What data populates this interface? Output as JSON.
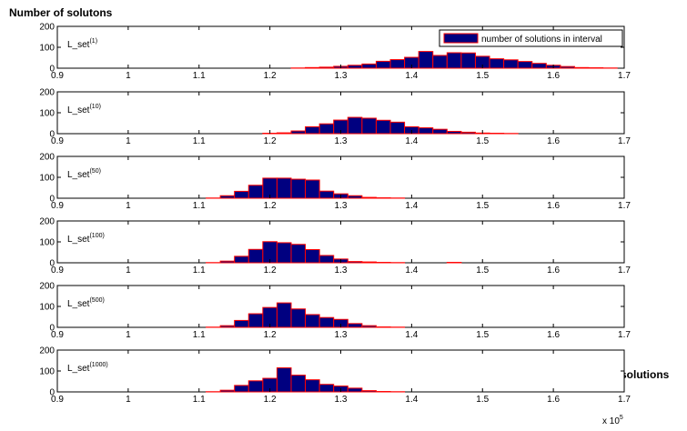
{
  "figure": {
    "ylabel": "Number of solutons",
    "xlabel": "Length of solutions",
    "x_exponent": "x 10",
    "x_exponent_power": "5",
    "legend_label": "number of solutions in interval",
    "bar_color": "#000080",
    "edge_color": "#ff0000"
  },
  "chart_data": [
    {
      "type": "bar",
      "label_base": "L_set",
      "label_sup": "(1)",
      "xlim": [
        0.9,
        1.7
      ],
      "ylim": [
        0,
        200
      ],
      "yticks": [
        "0",
        "100",
        "200"
      ],
      "xticks": [
        "0.9",
        "1",
        "1.1",
        "1.2",
        "1.3",
        "1.4",
        "1.5",
        "1.6",
        "1.7"
      ],
      "bin_start": 0.97,
      "bin_width": 0.02,
      "values": [
        0,
        0,
        0,
        0,
        0,
        0,
        0,
        0,
        0,
        0,
        0,
        0,
        0,
        1,
        3,
        5,
        9,
        14,
        20,
        33,
        41,
        52,
        80,
        61,
        74,
        73,
        57,
        45,
        40,
        32,
        23,
        14,
        8,
        3,
        2,
        1
      ]
    },
    {
      "type": "bar",
      "label_base": "L_set",
      "label_sup": "(10)",
      "xlim": [
        0.9,
        1.7
      ],
      "ylim": [
        0,
        200
      ],
      "yticks": [
        "0",
        "100",
        "200"
      ],
      "xticks": [
        "0.9",
        "1",
        "1.1",
        "1.2",
        "1.3",
        "1.4",
        "1.5",
        "1.6",
        "1.7"
      ],
      "bin_start": 0.97,
      "bin_width": 0.02,
      "values": [
        0,
        0,
        0,
        0,
        0,
        0,
        0,
        0,
        0,
        0,
        0,
        2,
        4,
        13,
        33,
        47,
        65,
        78,
        74,
        64,
        55,
        33,
        28,
        21,
        11,
        7,
        3,
        2,
        1,
        0,
        0,
        0,
        0,
        0,
        0,
        0
      ]
    },
    {
      "type": "bar",
      "label_base": "L_set",
      "label_sup": "(50)",
      "xlim": [
        0.9,
        1.7
      ],
      "ylim": [
        0,
        200
      ],
      "yticks": [
        "0",
        "100",
        "200"
      ],
      "xticks": [
        "0.9",
        "1",
        "1.1",
        "1.2",
        "1.3",
        "1.4",
        "1.5",
        "1.6",
        "1.7"
      ],
      "bin_start": 0.97,
      "bin_width": 0.02,
      "values": [
        0,
        0,
        0,
        0,
        0,
        0,
        0,
        1,
        12,
        33,
        62,
        96,
        96,
        91,
        87,
        34,
        21,
        12,
        4,
        2,
        1,
        0,
        0,
        0,
        0,
        0,
        0,
        0,
        0,
        0,
        0,
        0,
        0,
        0,
        0,
        0
      ]
    },
    {
      "type": "bar",
      "label_base": "L_set",
      "label_sup": "(100)",
      "xlim": [
        0.9,
        1.7
      ],
      "ylim": [
        0,
        200
      ],
      "yticks": [
        "0",
        "100",
        "200"
      ],
      "xticks": [
        "0.9",
        "1",
        "1.1",
        "1.2",
        "1.3",
        "1.4",
        "1.5",
        "1.6",
        "1.7"
      ],
      "bin_start": 0.97,
      "bin_width": 0.02,
      "values": [
        0,
        0,
        0,
        0,
        0,
        0,
        0,
        1,
        8,
        31,
        64,
        101,
        96,
        88,
        63,
        35,
        18,
        6,
        4,
        2,
        1,
        0,
        0,
        0,
        2,
        0,
        0,
        0,
        0,
        0,
        0,
        0,
        0,
        0,
        0,
        0
      ]
    },
    {
      "type": "bar",
      "label_base": "L_set",
      "label_sup": "(500)",
      "xlim": [
        0.9,
        1.7
      ],
      "ylim": [
        0,
        200
      ],
      "yticks": [
        "0",
        "100",
        "200"
      ],
      "xticks": [
        "0.9",
        "1",
        "1.1",
        "1.2",
        "1.3",
        "1.4",
        "1.5",
        "1.6",
        "1.7"
      ],
      "bin_start": 0.97,
      "bin_width": 0.02,
      "values": [
        0,
        0,
        0,
        0,
        0,
        0,
        0,
        1,
        8,
        33,
        65,
        95,
        117,
        88,
        61,
        47,
        38,
        18,
        8,
        2,
        1,
        0,
        0,
        0,
        0,
        0,
        0,
        0,
        0,
        0,
        0,
        0,
        0,
        0,
        0,
        0
      ]
    },
    {
      "type": "bar",
      "label_base": "L_set",
      "label_sup": "(1000)",
      "xlim": [
        0.9,
        1.7
      ],
      "ylim": [
        0,
        200
      ],
      "yticks": [
        "0",
        "100",
        "200"
      ],
      "xticks": [
        "0.9",
        "1",
        "1.1",
        "1.2",
        "1.3",
        "1.4",
        "1.5",
        "1.6",
        "1.7"
      ],
      "bin_start": 0.97,
      "bin_width": 0.02,
      "values": [
        0,
        0,
        0,
        0,
        0,
        0,
        0,
        1,
        8,
        31,
        53,
        65,
        115,
        80,
        58,
        36,
        28,
        18,
        6,
        2,
        1,
        0,
        0,
        0,
        0,
        0,
        0,
        0,
        0,
        0,
        0,
        0,
        0,
        0,
        0,
        0
      ]
    }
  ]
}
